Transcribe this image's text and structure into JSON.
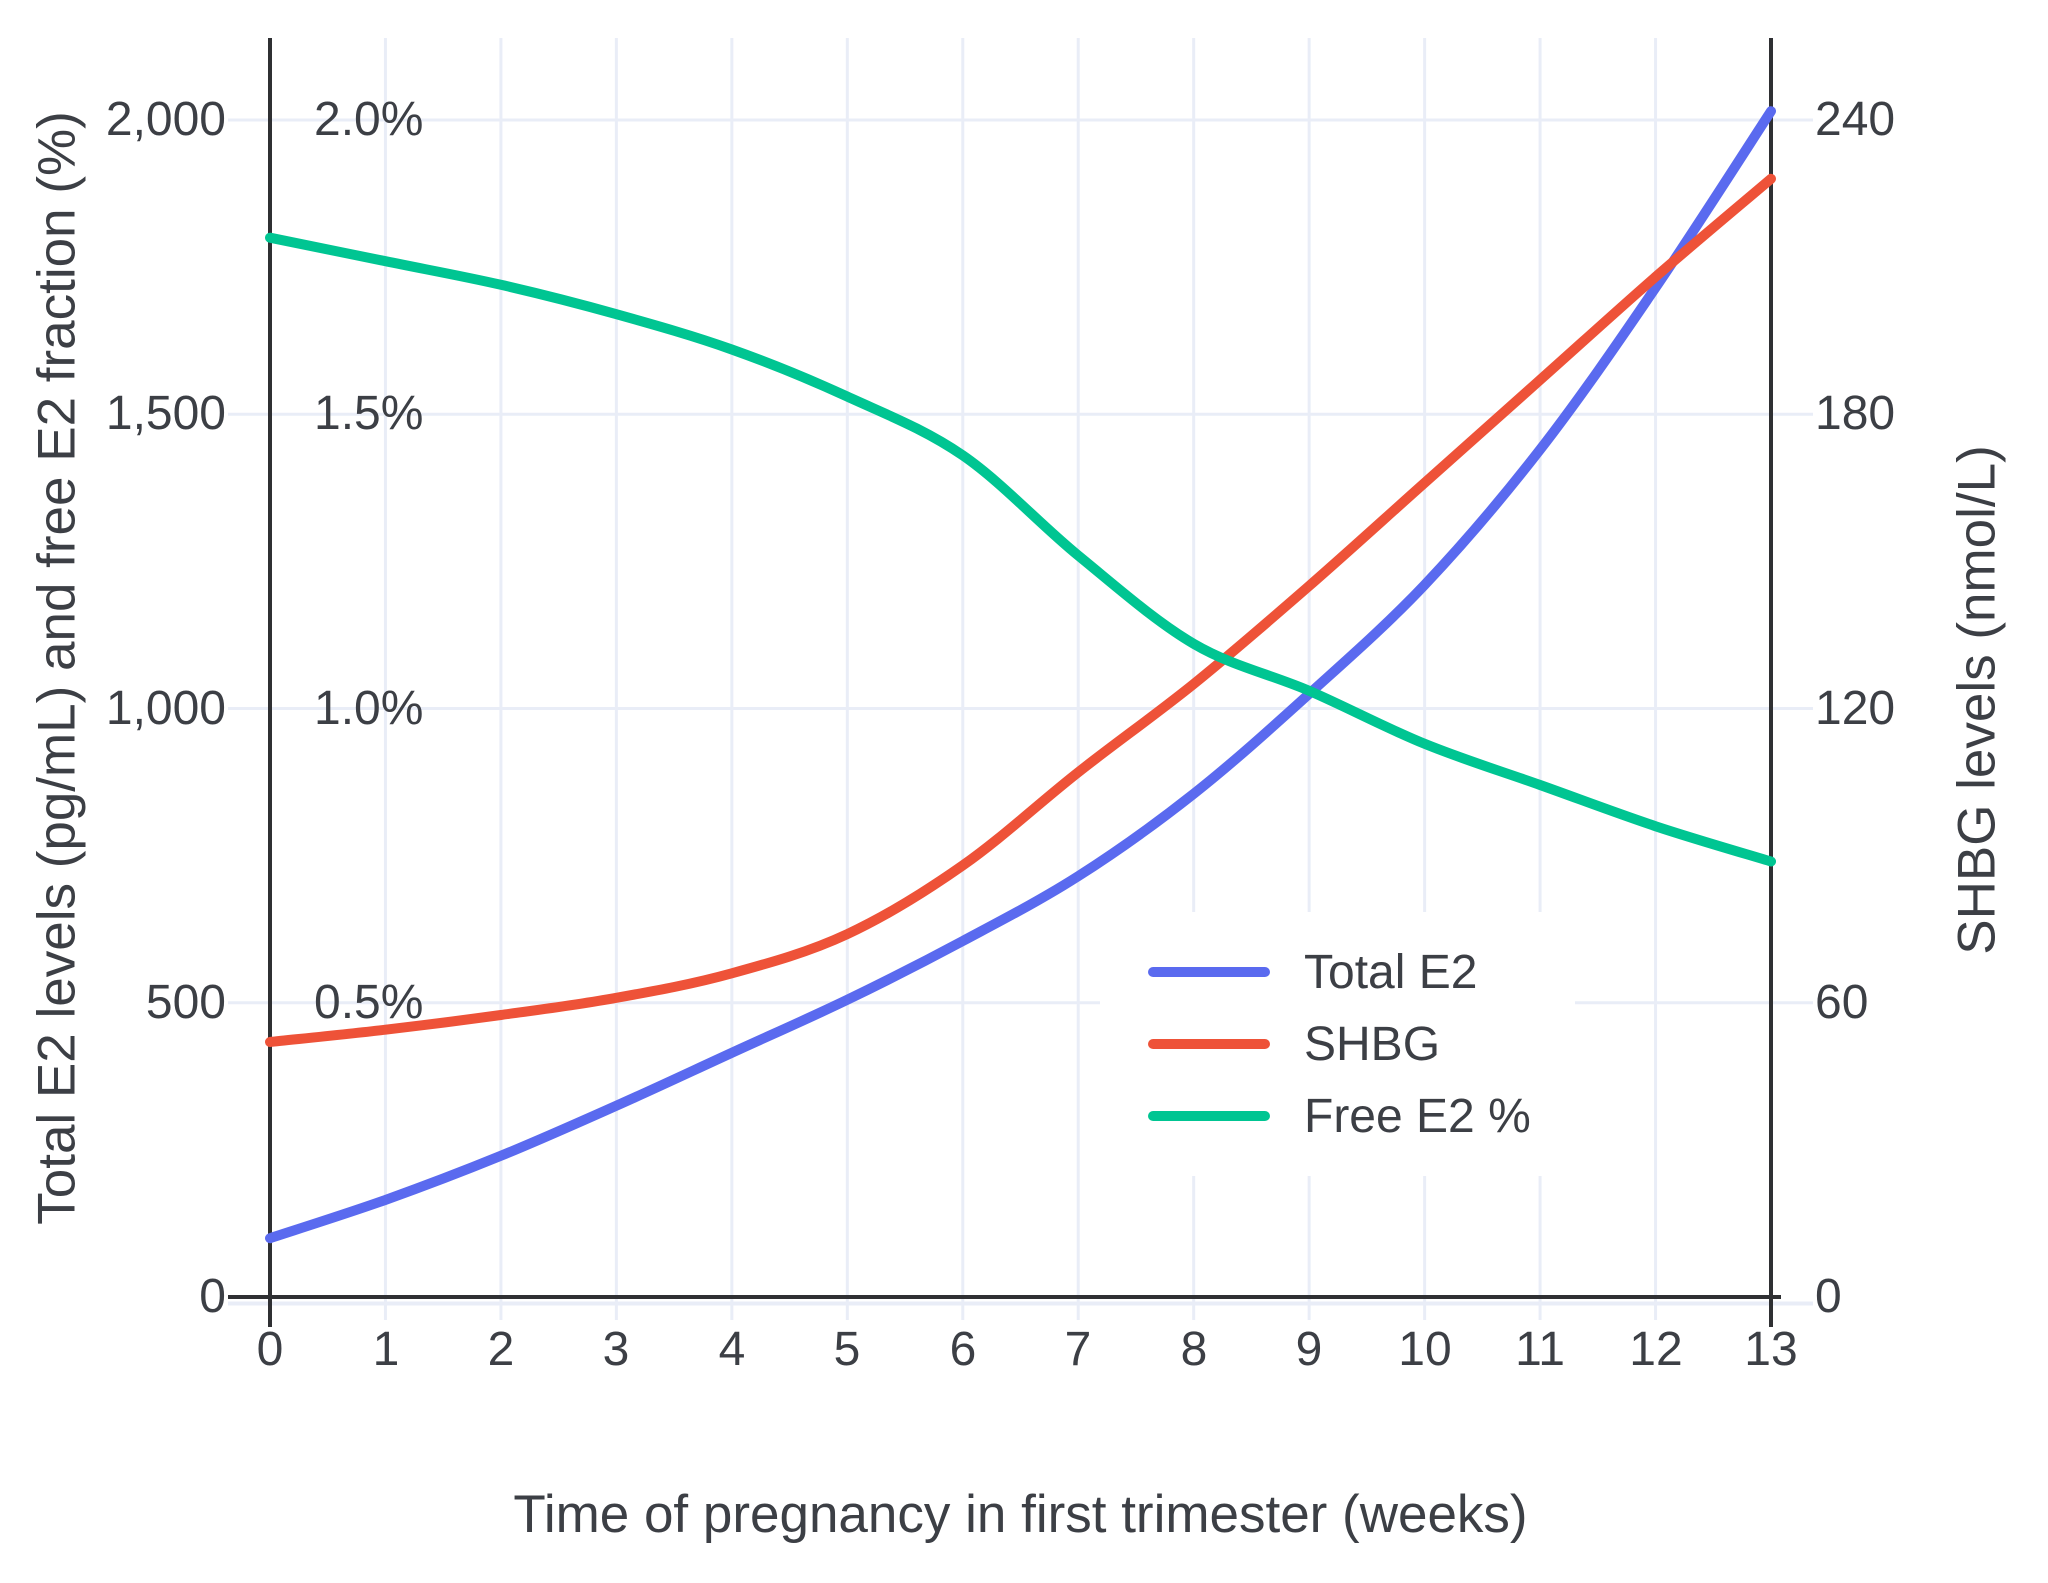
{
  "chart_data": {
    "type": "line",
    "x": [
      0,
      1,
      2,
      3,
      4,
      5,
      6,
      7,
      8,
      9,
      10,
      11,
      12,
      13
    ],
    "x_ticklabels": [
      "0",
      "1",
      "2",
      "3",
      "4",
      "5",
      "6",
      "7",
      "8",
      "9",
      "10",
      "11",
      "12",
      "13"
    ],
    "xlabel": "Time of pregnancy in first trimester (weeks)",
    "ylabel_left": "Total E2 levels (pg/mL) and free E2 fraction (%)",
    "ylabel_right": "SHBG levels (nmol/L)",
    "xlim": [
      0,
      13
    ],
    "ylim_left": [
      0,
      2135
    ],
    "ylim_right": [
      0,
      256
    ],
    "grid": true,
    "legend_position": "inside-lower-right",
    "yticks_left": {
      "labels": [
        "0",
        "500",
        "1,000",
        "1,500",
        "2,000"
      ],
      "values": [
        0,
        500,
        1000,
        1500,
        2000
      ]
    },
    "percent_ticks": {
      "labels": [
        "0.5%",
        "1.0%",
        "1.5%",
        "2.0%"
      ],
      "values": [
        0.5,
        1.0,
        1.5,
        2.0
      ]
    },
    "yticks_right": {
      "labels": [
        "0",
        "60",
        "120",
        "180",
        "240"
      ],
      "values": [
        0,
        60,
        120,
        180,
        240
      ]
    },
    "series": [
      {
        "name": "Total E2",
        "axis": "left",
        "unit": "pg/mL",
        "color": "#5A6AEF",
        "values": [
          100,
          165,
          240,
          325,
          415,
          505,
          605,
          715,
          855,
          1025,
          1210,
          1440,
          1715,
          2015
        ]
      },
      {
        "name": "SHBG",
        "axis": "right",
        "unit": "nmol/L",
        "color": "#EE5238",
        "values": [
          52,
          54.5,
          57.5,
          61,
          66,
          74,
          88,
          107,
          125,
          145,
          166,
          187,
          208,
          228
        ]
      },
      {
        "name": "Free E2 %",
        "axis": "left-percent",
        "unit": "%",
        "color": "#00C592",
        "values": [
          1.8,
          1.76,
          1.72,
          1.67,
          1.61,
          1.53,
          1.43,
          1.26,
          1.11,
          1.03,
          0.94,
          0.87,
          0.8,
          0.74
        ]
      }
    ],
    "colors": {
      "grid": "#E9EDF7",
      "axis": "#2F3033",
      "text": "#3C3F45",
      "background": "#FFFFFF"
    }
  }
}
